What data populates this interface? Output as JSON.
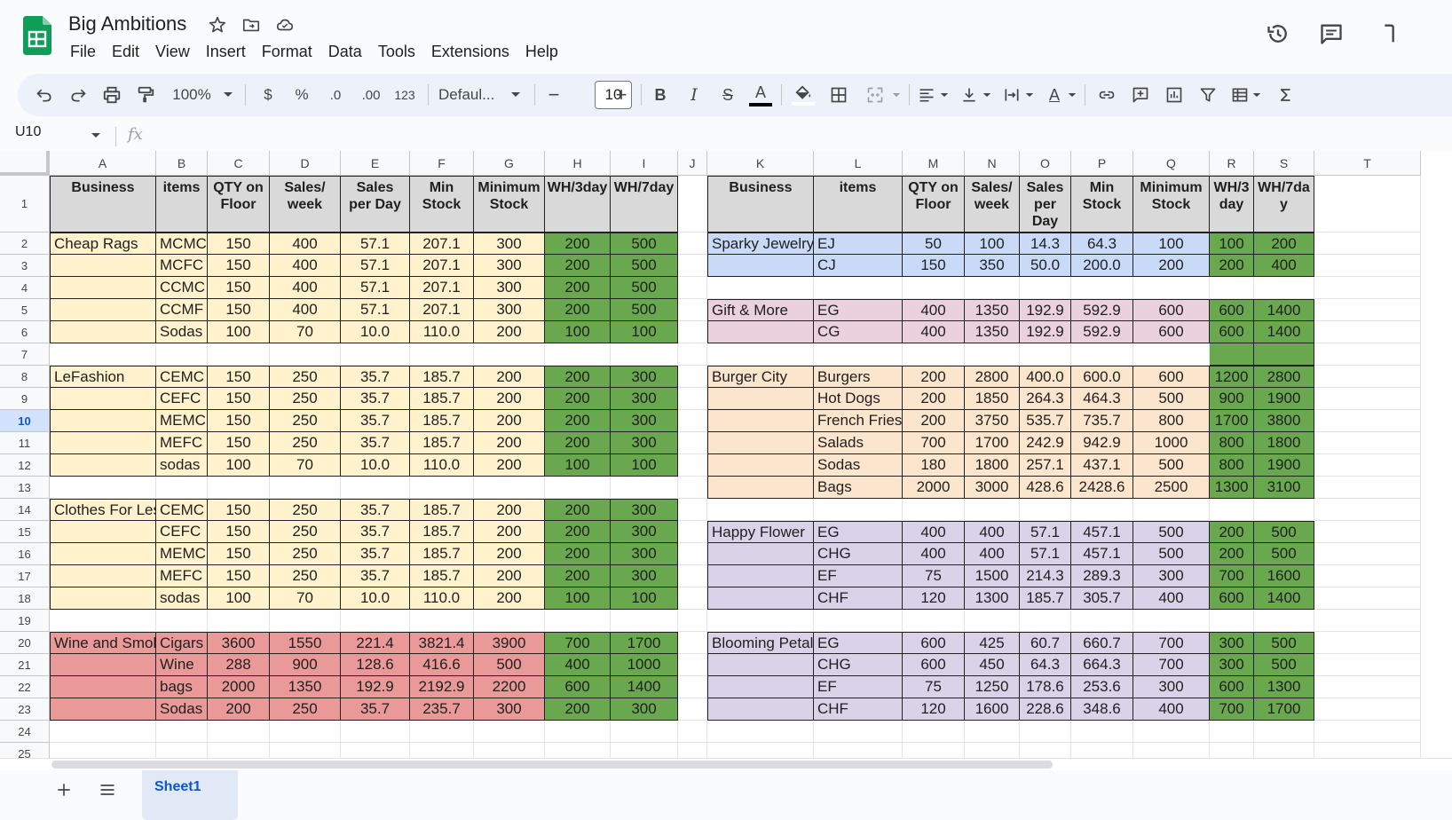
{
  "app": {
    "title": "Big Ambitions",
    "menus": [
      "File",
      "Edit",
      "View",
      "Insert",
      "Format",
      "Data",
      "Tools",
      "Extensions",
      "Help"
    ]
  },
  "toolbar": {
    "zoom": "100%",
    "currency": "$",
    "percent": "%",
    "dec_decrease": ".0",
    "dec_increase": ".00",
    "number_format": "123",
    "font_name": "Defaul...",
    "font_size": "10",
    "minus": "−",
    "plus": "+",
    "bold": "B",
    "italic": "I",
    "strike": "S",
    "text_color": "A",
    "text_rotation": "A"
  },
  "formula_bar": {
    "name_box": "U10",
    "fx": "fx"
  },
  "sheet": {
    "columns": [
      "A",
      "B",
      "C",
      "D",
      "E",
      "F",
      "G",
      "H",
      "I",
      "J",
      "K",
      "L",
      "M",
      "N",
      "O",
      "P",
      "Q",
      "R",
      "S",
      "T"
    ],
    "rows": [
      "1",
      "2",
      "3",
      "4",
      "5",
      "6",
      "7",
      "8",
      "9",
      "10",
      "11",
      "12",
      "13",
      "14",
      "15",
      "16",
      "17",
      "18",
      "19",
      "20",
      "21",
      "22",
      "23",
      "24",
      "25"
    ],
    "selected_row": "10",
    "left_headers": [
      "Business",
      "items",
      "QTY on Floor",
      "Sales/ week",
      "Sales per Day",
      "Min Stock",
      "Minimum Stock",
      "WH/3day",
      "WH/7day"
    ],
    "right_headers": [
      "Business",
      "items",
      "QTY on Floor",
      "Sales/ week",
      "Sales per Day",
      "Min Stock",
      "Minimum Stock",
      "WH/3 day",
      "WH/7da y"
    ],
    "left_blocks": [
      {
        "row": 2,
        "business": "Cheap Rags",
        "color": "#fff2cc",
        "rows": [
          [
            "MCMC",
            "150",
            "400",
            "57.1",
            "207.1",
            "300",
            "200",
            "500"
          ],
          [
            "MCFC",
            "150",
            "400",
            "57.1",
            "207.1",
            "300",
            "200",
            "500"
          ],
          [
            "CCMC",
            "150",
            "400",
            "57.1",
            "207.1",
            "300",
            "200",
            "500"
          ],
          [
            "CCMF",
            "150",
            "400",
            "57.1",
            "207.1",
            "300",
            "200",
            "500"
          ],
          [
            "Sodas",
            "100",
            "70",
            "10.0",
            "110.0",
            "200",
            "100",
            "100"
          ]
        ]
      },
      {
        "row": 8,
        "business": "LeFashion",
        "color": "#fff2cc",
        "rows": [
          [
            "CEMC",
            "150",
            "250",
            "35.7",
            "185.7",
            "200",
            "200",
            "300"
          ],
          [
            "CEFC",
            "150",
            "250",
            "35.7",
            "185.7",
            "200",
            "200",
            "300"
          ],
          [
            "MEMC",
            "150",
            "250",
            "35.7",
            "185.7",
            "200",
            "200",
            "300"
          ],
          [
            "MEFC",
            "150",
            "250",
            "35.7",
            "185.7",
            "200",
            "200",
            "300"
          ],
          [
            "sodas",
            "100",
            "70",
            "10.0",
            "110.0",
            "200",
            "100",
            "100"
          ]
        ]
      },
      {
        "row": 14,
        "business": "Clothes For Less",
        "color": "#fff2cc",
        "rows": [
          [
            "CEMC",
            "150",
            "250",
            "35.7",
            "185.7",
            "200",
            "200",
            "300"
          ],
          [
            "CEFC",
            "150",
            "250",
            "35.7",
            "185.7",
            "200",
            "200",
            "300"
          ],
          [
            "MEMC",
            "150",
            "250",
            "35.7",
            "185.7",
            "200",
            "200",
            "300"
          ],
          [
            "MEFC",
            "150",
            "250",
            "35.7",
            "185.7",
            "200",
            "200",
            "300"
          ],
          [
            "sodas",
            "100",
            "70",
            "10.0",
            "110.0",
            "200",
            "100",
            "100"
          ]
        ]
      },
      {
        "row": 20,
        "business": "Wine and Smoke",
        "color": "#ea9999",
        "rows": [
          [
            "Cigars",
            "3600",
            "1550",
            "221.4",
            "3821.4",
            "3900",
            "700",
            "1700"
          ],
          [
            "Wine",
            "288",
            "900",
            "128.6",
            "416.6",
            "500",
            "400",
            "1000"
          ],
          [
            "bags",
            "2000",
            "1350",
            "192.9",
            "2192.9",
            "2200",
            "600",
            "1400"
          ],
          [
            "Sodas",
            "200",
            "250",
            "35.7",
            "235.7",
            "300",
            "200",
            "300"
          ]
        ]
      }
    ],
    "right_blocks": [
      {
        "row": 2,
        "business": "Sparky Jewelry",
        "color": "#c9daf8",
        "rows": [
          [
            "EJ",
            "50",
            "100",
            "14.3",
            "64.3",
            "100",
            "100",
            "200"
          ],
          [
            "CJ",
            "150",
            "350",
            "50.0",
            "200.0",
            "200",
            "200",
            "400"
          ]
        ]
      },
      {
        "row": 5,
        "business": "Gift & More",
        "color": "#ead1dc",
        "rows": [
          [
            "EG",
            "400",
            "1350",
            "192.9",
            "592.9",
            "600",
            "600",
            "1400"
          ],
          [
            "CG",
            "400",
            "1350",
            "192.9",
            "592.9",
            "600",
            "600",
            "1400"
          ]
        ]
      },
      {
        "row": 8,
        "business": "Burger City",
        "color": "#fce5cd",
        "rows": [
          [
            "Burgers",
            "200",
            "2800",
            "400.0",
            "600.0",
            "600",
            "1200",
            "2800"
          ],
          [
            "Hot Dogs",
            "200",
            "1850",
            "264.3",
            "464.3",
            "500",
            "900",
            "1900"
          ],
          [
            "French Fries",
            "200",
            "3750",
            "535.7",
            "735.7",
            "800",
            "1700",
            "3800"
          ],
          [
            "Salads",
            "700",
            "1700",
            "242.9",
            "942.9",
            "1000",
            "800",
            "1800"
          ],
          [
            "Sodas",
            "180",
            "1800",
            "257.1",
            "437.1",
            "500",
            "800",
            "1900"
          ],
          [
            "Bags",
            "2000",
            "3000",
            "428.6",
            "2428.6",
            "2500",
            "1300",
            "3100"
          ]
        ]
      },
      {
        "row": 15,
        "business": "Happy Flower",
        "color": "#d9d2e9",
        "rows": [
          [
            "EG",
            "400",
            "400",
            "57.1",
            "457.1",
            "500",
            "200",
            "500"
          ],
          [
            "CHG",
            "400",
            "400",
            "57.1",
            "457.1",
            "500",
            "200",
            "500"
          ],
          [
            "EF",
            "75",
            "1500",
            "214.3",
            "289.3",
            "300",
            "700",
            "1600"
          ],
          [
            "CHF",
            "120",
            "1300",
            "185.7",
            "305.7",
            "400",
            "600",
            "1400"
          ]
        ]
      },
      {
        "row": 20,
        "business": "Blooming Petals",
        "color": "#d9d2e9",
        "rows": [
          [
            "EG",
            "600",
            "425",
            "60.7",
            "660.7",
            "700",
            "300",
            "500"
          ],
          [
            "CHG",
            "600",
            "450",
            "64.3",
            "664.3",
            "700",
            "300",
            "500"
          ],
          [
            "EF",
            "75",
            "1250",
            "178.6",
            "253.6",
            "300",
            "600",
            "1300"
          ],
          [
            "CHF",
            "120",
            "1600",
            "228.6",
            "348.6",
            "400",
            "700",
            "1700"
          ]
        ]
      }
    ],
    "colors": {
      "header": "#d9d9d9",
      "green": "#6aa84f"
    },
    "sheet_tab": "Sheet1"
  }
}
